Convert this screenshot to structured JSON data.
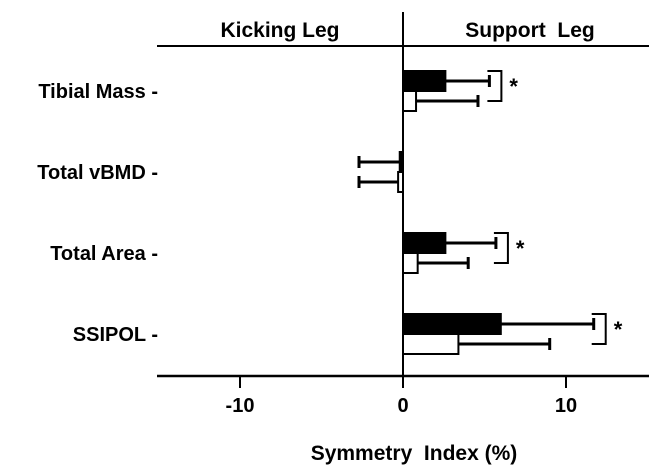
{
  "chart_data": {
    "type": "bar",
    "orientation": "horizontal",
    "categories": [
      "Tibial Mass",
      "Total vBMD",
      "Total Area",
      "SSIPOL"
    ],
    "series": [
      {
        "fill": "#000000",
        "values": [
          2.6,
          -0.2,
          2.6,
          6.0
        ],
        "error": [
          2.7,
          2.5,
          3.1,
          5.7
        ]
      },
      {
        "fill": "#ffffff",
        "values": [
          0.8,
          -0.3,
          0.9,
          3.4
        ],
        "error": [
          3.8,
          2.4,
          3.1,
          5.6
        ]
      }
    ],
    "significance": [
      "*",
      "",
      "*",
      "*"
    ],
    "xlabel": "Symmetry  Index (%)",
    "ylabel": "",
    "xlim": [
      -15,
      15
    ],
    "xticks": [
      -10,
      0,
      10
    ],
    "xtick_labels": [
      "-10",
      "0",
      "10"
    ],
    "headers": {
      "left": "Kicking Leg",
      "right": "Support  Leg"
    },
    "grid": false,
    "legend": "none"
  }
}
